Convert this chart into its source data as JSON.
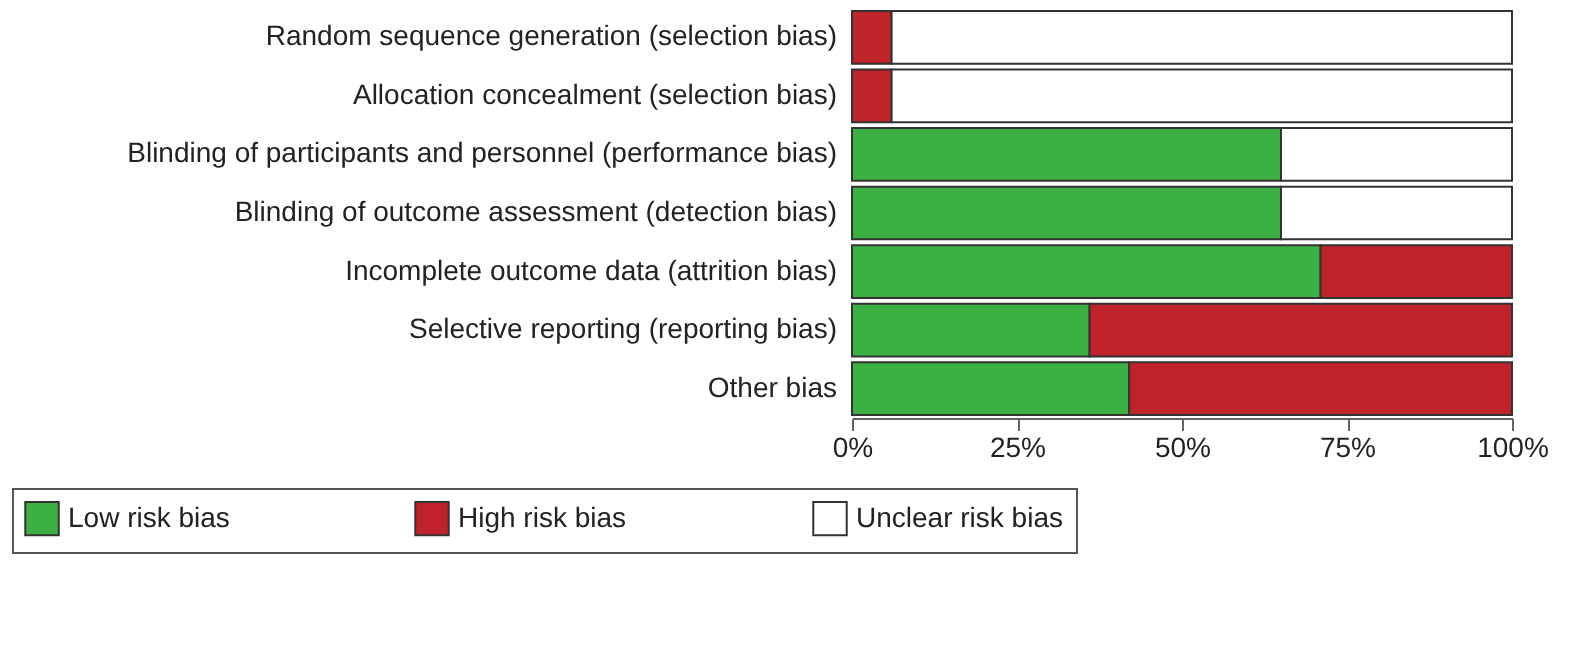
{
  "chart_data": {
    "type": "bar",
    "orientation": "horizontal",
    "stacked": true,
    "categories": [
      "Random sequence generation (selection bias)",
      "Allocation concealment (selection bias)",
      "Blinding of participants and personnel (performance bias)",
      "Blinding of outcome assessment (detection bias)",
      "Incomplete outcome data (attrition bias)",
      "Selective reporting (reporting bias)",
      "Other bias"
    ],
    "series": [
      {
        "name": "Low risk bias",
        "color": "#3cb043",
        "values": [
          0,
          0,
          65,
          65,
          71,
          36,
          42
        ]
      },
      {
        "name": "High risk bias",
        "color": "#c0232a",
        "values": [
          6,
          6,
          0,
          0,
          29,
          64,
          58
        ]
      },
      {
        "name": "Unclear risk bias",
        "color": "#ffffff",
        "values": [
          94,
          94,
          35,
          35,
          0,
          0,
          0
        ]
      }
    ],
    "xlim": [
      0,
      100
    ],
    "xticks": [
      {
        "value": 0,
        "label": "0%"
      },
      {
        "value": 25,
        "label": "25%"
      },
      {
        "value": 50,
        "label": "50%"
      },
      {
        "value": 75,
        "label": "75%"
      },
      {
        "value": 100,
        "label": "100%"
      }
    ],
    "grid": false,
    "legend": "bottom"
  }
}
